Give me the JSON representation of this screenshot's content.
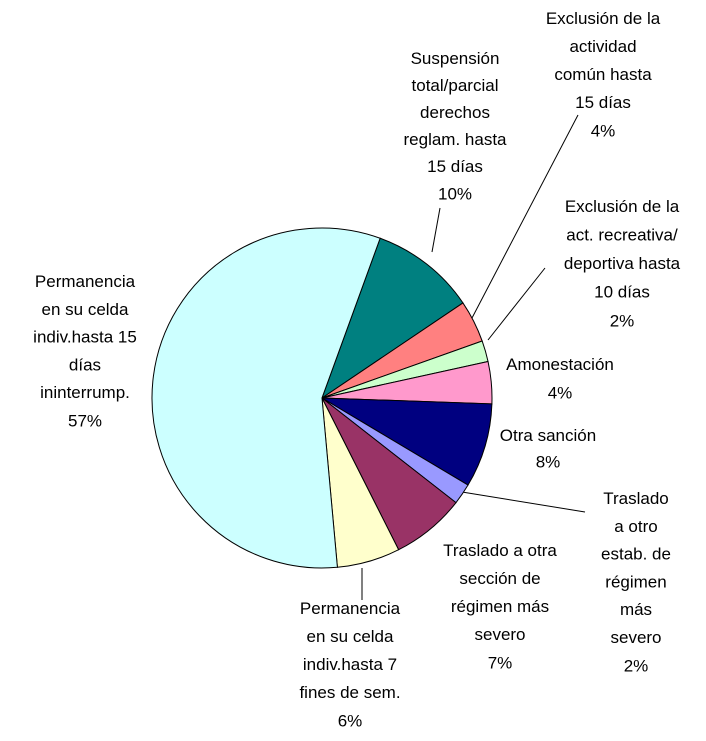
{
  "chart_data": {
    "type": "pie",
    "categories": [
      "Suspensión\ntotal/parcial\nderechos\nreglam. hasta\n15 días",
      "Exclusión de la\nactividad\ncomún hasta\n15 días",
      "Exclusión de la\nact. recreativa/\ndeportiva hasta\n10 días",
      "Amonestación",
      "Otra sanción",
      "Traslado\na otro\nestab. de\nrégimen\nmás\nsevero",
      "Traslado a otra\nsección de\nrégimen más\nsevero",
      "Permanencia\nen su celda\nindiv.hasta 7\nfines de sem.",
      "Permanencia\nen su celda\nindiv.hasta 15\ndías\nininterrump."
    ],
    "values": [
      10,
      4,
      2,
      4,
      8,
      2,
      7,
      6,
      57
    ],
    "value_labels": [
      "10%",
      "4%",
      "2%",
      "4%",
      "8%",
      "2%",
      "7%",
      "6%",
      "57%"
    ],
    "colors": [
      "#008080",
      "#ff8080",
      "#ccffcc",
      "#ff99cc",
      "#000080",
      "#9999ff",
      "#993366",
      "#ffffcc",
      "#ccffff"
    ]
  }
}
